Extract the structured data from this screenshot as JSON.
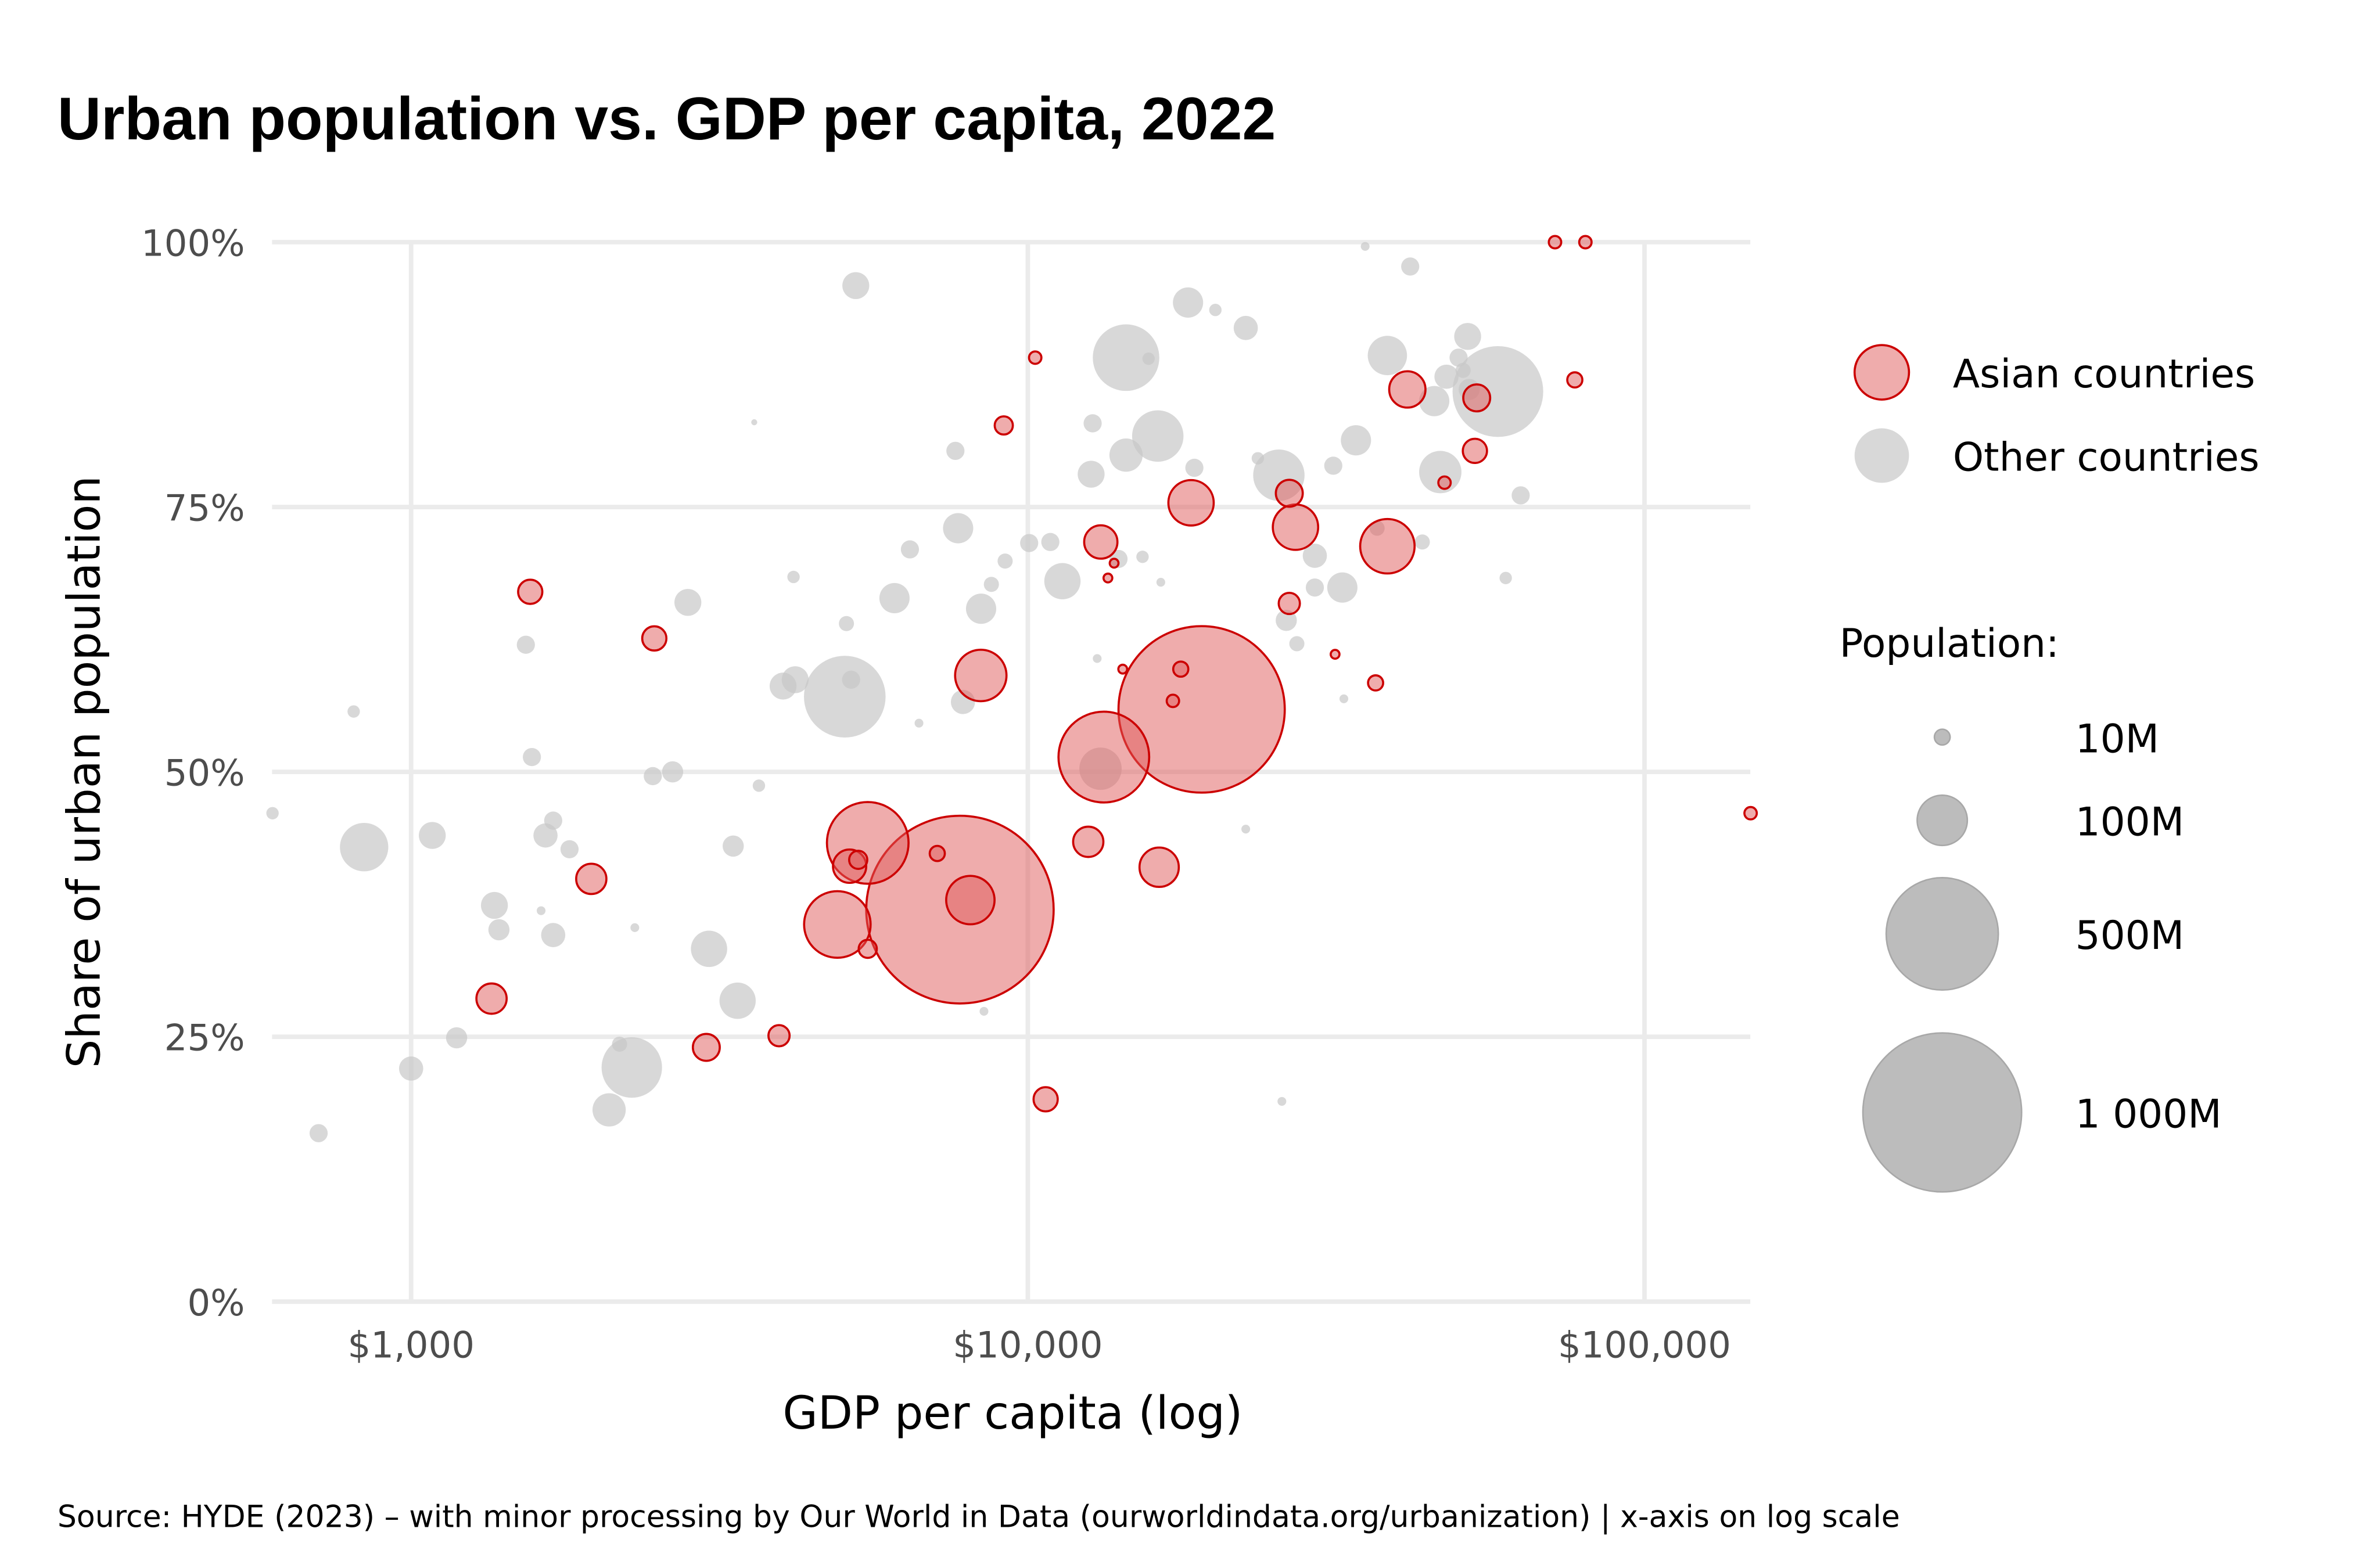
{
  "chart_data": {
    "type": "scatter",
    "title": "Urban population vs. GDP per capita, 2022",
    "xlabel": "GDP per capita (log)",
    "ylabel": "Share of urban population",
    "x_scale": "log",
    "xlim": [
      596,
      148600
    ],
    "ylim": [
      0,
      100
    ],
    "x_ticks": [
      {
        "value": 1000,
        "label": "$1,000"
      },
      {
        "value": 10000,
        "label": "$10,000"
      },
      {
        "value": 100000,
        "label": "$100,000"
      }
    ],
    "y_ticks": [
      {
        "value": 0,
        "label": "0%"
      },
      {
        "value": 25,
        "label": "25%"
      },
      {
        "value": 50,
        "label": "50%"
      },
      {
        "value": 75,
        "label": "75%"
      },
      {
        "value": 100,
        "label": "100%"
      }
    ],
    "grid": true,
    "legend_position": "right",
    "legend": {
      "groups": [
        {
          "key": "asia",
          "label": "Asian countries",
          "fill": "#f0adad",
          "stroke": "#cc0000"
        },
        {
          "key": "other",
          "label": "Other countries",
          "fill": "#d9d9d9",
          "stroke": "none"
        }
      ],
      "size_title": "Population:",
      "size_keys": [
        {
          "pop_millions": 10,
          "label": "10M"
        },
        {
          "pop_millions": 100,
          "label": "100M"
        },
        {
          "pop_millions": 500,
          "label": "500M"
        },
        {
          "pop_millions": 1000,
          "label": "1 000M"
        }
      ]
    },
    "caption": "Source: HYDE (2023) – with minor processing by Our World in Data (ourworldindata.org/urbanization)  |  x-axis on log scale",
    "series": [
      {
        "name": "Other countries",
        "key": "other",
        "points": [
          {
            "gdp": 5260,
            "urban": 95.9,
            "pop": 29
          },
          {
            "gdp": 596,
            "urban": 46.1,
            "pop": 6
          },
          {
            "gdp": 807,
            "urban": 55.7,
            "pop": 6
          },
          {
            "gdp": 839,
            "urban": 42.9,
            "pop": 93
          },
          {
            "gdp": 708,
            "urban": 15.9,
            "pop": 13
          },
          {
            "gdp": 1000,
            "urban": 22.0,
            "pop": 23
          },
          {
            "gdp": 1082,
            "urban": 44.0,
            "pop": 29
          },
          {
            "gdp": 1185,
            "urban": 24.9,
            "pop": 18
          },
          {
            "gdp": 1365,
            "urban": 37.4,
            "pop": 29
          },
          {
            "gdp": 1388,
            "urban": 35.1,
            "pop": 18
          },
          {
            "gdp": 1535,
            "urban": 62.0,
            "pop": 13
          },
          {
            "gdp": 1570,
            "urban": 51.4,
            "pop": 13
          },
          {
            "gdp": 1625,
            "urban": 36.9,
            "pop": 3
          },
          {
            "gdp": 1652,
            "urban": 44.0,
            "pop": 23
          },
          {
            "gdp": 1700,
            "urban": 45.4,
            "pop": 13
          },
          {
            "gdp": 1807,
            "urban": 42.7,
            "pop": 13
          },
          {
            "gdp": 1700,
            "urban": 34.6,
            "pop": 23
          },
          {
            "gdp": 2094,
            "urban": 18.1,
            "pop": 44
          },
          {
            "gdp": 2178,
            "urban": 24.3,
            "pop": 9
          },
          {
            "gdp": 2280,
            "urban": 22.1,
            "pop": 145
          },
          {
            "gdp": 2306,
            "urban": 35.3,
            "pop": 3
          },
          {
            "gdp": 2466,
            "urban": 49.6,
            "pop": 13
          },
          {
            "gdp": 2654,
            "urban": 50.0,
            "pop": 18
          },
          {
            "gdp": 2810,
            "urban": 66.0,
            "pop": 29
          },
          {
            "gdp": 3042,
            "urban": 33.3,
            "pop": 52
          },
          {
            "gdp": 3328,
            "urban": 43.0,
            "pop": 18
          },
          {
            "gdp": 3384,
            "urban": 28.4,
            "pop": 52
          },
          {
            "gdp": 3600,
            "urban": 83.0,
            "pop": 1.5
          },
          {
            "gdp": 3664,
            "urban": 48.7,
            "pop": 6
          },
          {
            "gdp": 4010,
            "urban": 58.1,
            "pop": 29
          },
          {
            "gdp": 4170,
            "urban": 68.4,
            "pop": 6
          },
          {
            "gdp": 4195,
            "urban": 58.7,
            "pop": 29
          },
          {
            "gdp": 5050,
            "urban": 57.1,
            "pop": 265
          },
          {
            "gdp": 5080,
            "urban": 64.0,
            "pop": 9
          },
          {
            "gdp": 5170,
            "urban": 58.7,
            "pop": 13
          },
          {
            "gdp": 6080,
            "urban": 66.4,
            "pop": 36
          },
          {
            "gdp": 6440,
            "urban": 71.0,
            "pop": 13
          },
          {
            "gdp": 6660,
            "urban": 54.6,
            "pop": 3
          },
          {
            "gdp": 7630,
            "urban": 80.3,
            "pop": 13
          },
          {
            "gdp": 7710,
            "urban": 73.0,
            "pop": 36
          },
          {
            "gdp": 7850,
            "urban": 56.6,
            "pop": 23
          },
          {
            "gdp": 8400,
            "urban": 65.4,
            "pop": 36
          },
          {
            "gdp": 8490,
            "urban": 27.4,
            "pop": 3
          },
          {
            "gdp": 8730,
            "urban": 67.7,
            "pop": 9
          },
          {
            "gdp": 9190,
            "urban": 69.9,
            "pop": 9
          },
          {
            "gdp": 10050,
            "urban": 71.6,
            "pop": 13
          },
          {
            "gdp": 10880,
            "urban": 71.7,
            "pop": 13
          },
          {
            "gdp": 11380,
            "urban": 68.0,
            "pop": 52
          },
          {
            "gdp": 12670,
            "urban": 78.1,
            "pop": 29
          },
          {
            "gdp": 12740,
            "urban": 82.9,
            "pop": 13
          },
          {
            "gdp": 12960,
            "urban": 60.7,
            "pop": 3
          },
          {
            "gdp": 13120,
            "urban": 50.3,
            "pop": 71
          },
          {
            "gdp": 14030,
            "urban": 70.1,
            "pop": 13
          },
          {
            "gdp": 14430,
            "urban": 89.1,
            "pop": 176
          },
          {
            "gdp": 14430,
            "urban": 79.9,
            "pop": 44
          },
          {
            "gdp": 15350,
            "urban": 70.3,
            "pop": 6
          },
          {
            "gdp": 15700,
            "urban": 89.0,
            "pop": 6
          },
          {
            "gdp": 16250,
            "urban": 81.7,
            "pop": 105
          },
          {
            "gdp": 16430,
            "urban": 67.9,
            "pop": 3
          },
          {
            "gdp": 18190,
            "urban": 94.3,
            "pop": 36
          },
          {
            "gdp": 18620,
            "urban": 78.7,
            "pop": 13
          },
          {
            "gdp": 20150,
            "urban": 93.6,
            "pop": 6
          },
          {
            "gdp": 22560,
            "urban": 91.9,
            "pop": 23
          },
          {
            "gdp": 22560,
            "urban": 44.6,
            "pop": 3
          },
          {
            "gdp": 23610,
            "urban": 79.6,
            "pop": 6
          },
          {
            "gdp": 25540,
            "urban": 78.0,
            "pop": 105
          },
          {
            "gdp": 25830,
            "urban": 18.9,
            "pop": 3
          },
          {
            "gdp": 26250,
            "urban": 64.3,
            "pop": 18
          },
          {
            "gdp": 27300,
            "urban": 62.1,
            "pop": 9
          },
          {
            "gdp": 29210,
            "urban": 70.4,
            "pop": 23
          },
          {
            "gdp": 29210,
            "urban": 67.4,
            "pop": 13
          },
          {
            "gdp": 31280,
            "urban": 78.9,
            "pop": 13
          },
          {
            "gdp": 32370,
            "urban": 67.4,
            "pop": 36
          },
          {
            "gdp": 32540,
            "urban": 56.9,
            "pop": 3
          },
          {
            "gdp": 34040,
            "urban": 81.3,
            "pop": 36
          },
          {
            "gdp": 35240,
            "urban": 99.6,
            "pop": 3
          },
          {
            "gdp": 36840,
            "urban": 73.0,
            "pop": 9
          },
          {
            "gdp": 38300,
            "urban": 89.3,
            "pop": 61
          },
          {
            "gdp": 41690,
            "urban": 97.7,
            "pop": 13
          },
          {
            "gdp": 43630,
            "urban": 71.7,
            "pop": 9
          },
          {
            "gdp": 45620,
            "urban": 85.0,
            "pop": 36
          },
          {
            "gdp": 46660,
            "urban": 78.3,
            "pop": 71
          },
          {
            "gdp": 47740,
            "urban": 87.3,
            "pop": 23
          },
          {
            "gdp": 49960,
            "urban": 89.1,
            "pop": 13
          },
          {
            "gdp": 50800,
            "urban": 87.9,
            "pop": 9
          },
          {
            "gdp": 51680,
            "urban": 91.1,
            "pop": 29
          },
          {
            "gdp": 51950,
            "urban": 86.1,
            "pop": 18
          },
          {
            "gdp": 57850,
            "urban": 85.9,
            "pop": 327
          },
          {
            "gdp": 59560,
            "urban": 68.3,
            "pop": 6
          },
          {
            "gdp": 62980,
            "urban": 76.1,
            "pop": 13
          }
        ]
      },
      {
        "name": "Asian countries",
        "key": "asia",
        "points": [
          {
            "gdp": 7760,
            "urban": 37.0,
            "pop": 1395
          },
          {
            "gdp": 19140,
            "urban": 55.9,
            "pop": 1098
          },
          {
            "gdp": 13280,
            "urban": 51.4,
            "pop": 327
          },
          {
            "gdp": 5500,
            "urban": 43.3,
            "pop": 265
          },
          {
            "gdp": 4910,
            "urban": 35.6,
            "pop": 176
          },
          {
            "gdp": 8070,
            "urban": 37.9,
            "pop": 93
          },
          {
            "gdp": 16330,
            "urban": 41.0,
            "pop": 61
          },
          {
            "gdp": 12530,
            "urban": 43.4,
            "pop": 36
          },
          {
            "gdp": 18400,
            "urban": 75.4,
            "pop": 82
          },
          {
            "gdp": 27170,
            "urban": 73.1,
            "pop": 82
          },
          {
            "gdp": 38280,
            "urban": 71.3,
            "pop": 118
          },
          {
            "gdp": 41240,
            "urban": 86.1,
            "pop": 52
          },
          {
            "gdp": 53460,
            "urban": 85.3,
            "pop": 29
          },
          {
            "gdp": 26550,
            "urban": 76.3,
            "pop": 29
          },
          {
            "gdp": 8390,
            "urban": 59.1,
            "pop": 105
          },
          {
            "gdp": 13130,
            "urban": 71.7,
            "pop": 44
          },
          {
            "gdp": 26550,
            "urban": 65.9,
            "pop": 18
          },
          {
            "gdp": 53090,
            "urban": 80.3,
            "pop": 23
          },
          {
            "gdp": 36640,
            "urban": 58.4,
            "pop": 9
          },
          {
            "gdp": 17700,
            "urban": 59.7,
            "pop": 9
          },
          {
            "gdp": 17190,
            "urban": 56.7,
            "pop": 6
          },
          {
            "gdp": 14250,
            "urban": 59.7,
            "pop": 3
          },
          {
            "gdp": 13490,
            "urban": 68.3,
            "pop": 3
          },
          {
            "gdp": 13800,
            "urban": 69.7,
            "pop": 3
          },
          {
            "gdp": 9140,
            "urban": 82.7,
            "pop": 13
          },
          {
            "gdp": 10280,
            "urban": 89.1,
            "pop": 6
          },
          {
            "gdp": 71600,
            "urban": 100.0,
            "pop": 6
          },
          {
            "gdp": 80200,
            "urban": 100.0,
            "pop": 6
          },
          {
            "gdp": 77100,
            "urban": 87.0,
            "pop": 9
          },
          {
            "gdp": 148600,
            "urban": 46.1,
            "pop": 6
          },
          {
            "gdp": 47400,
            "urban": 77.3,
            "pop": 6
          },
          {
            "gdp": 31500,
            "urban": 61.1,
            "pop": 3
          },
          {
            "gdp": 1560,
            "urban": 67.0,
            "pop": 23
          },
          {
            "gdp": 2480,
            "urban": 62.6,
            "pop": 23
          },
          {
            "gdp": 1960,
            "urban": 39.9,
            "pop": 36
          },
          {
            "gdp": 1350,
            "urban": 28.6,
            "pop": 36
          },
          {
            "gdp": 3010,
            "urban": 24.0,
            "pop": 29
          },
          {
            "gdp": 3950,
            "urban": 25.1,
            "pop": 18
          },
          {
            "gdp": 10690,
            "urban": 19.1,
            "pop": 23
          },
          {
            "gdp": 5310,
            "urban": 41.7,
            "pop": 13
          },
          {
            "gdp": 5500,
            "urban": 33.3,
            "pop": 13
          },
          {
            "gdp": 7130,
            "urban": 42.3,
            "pop": 9
          },
          {
            "gdp": 5140,
            "urban": 41.1,
            "pop": 44
          }
        ]
      }
    ]
  }
}
